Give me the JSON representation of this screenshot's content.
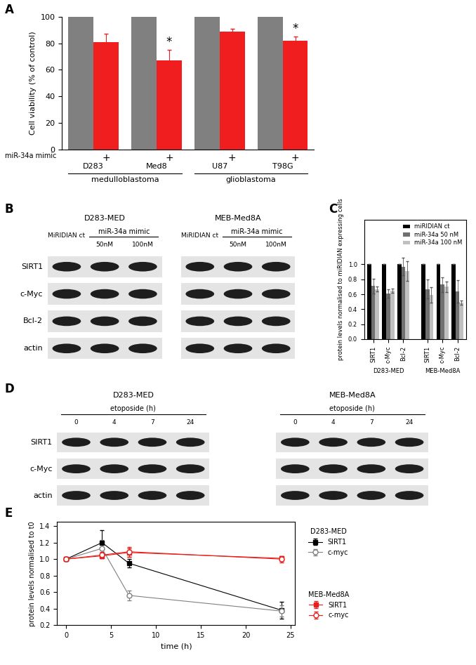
{
  "chart_data": [
    {
      "label": "A",
      "type": "bar",
      "ylabel": "Cell viability (% of control)",
      "groups": [
        {
          "name": "medulloblastoma",
          "categories": [
            "D283",
            "Med8"
          ]
        },
        {
          "name": "glioblastoma",
          "categories": [
            "U87",
            "T98G"
          ]
        }
      ],
      "series": [
        {
          "color": "#808080",
          "values": [
            100,
            100,
            100,
            100
          ]
        },
        {
          "name": "miR-34a mimic",
          "color": "#f01e1e",
          "values": [
            81,
            67,
            89,
            82
          ],
          "errors": [
            6,
            8,
            2,
            3
          ]
        }
      ],
      "treatment_mark": "+",
      "significance": [
        null,
        "*",
        null,
        "*"
      ],
      "ylim": [
        0,
        100
      ],
      "yticks": [
        0,
        20,
        40,
        60,
        80,
        100
      ]
    },
    {
      "label": "C",
      "type": "bar",
      "ylabel": "protein levels normalised to miRIDIAN expressing cells",
      "groups": [
        {
          "name": "D283-MED",
          "categories": [
            "SIRT1",
            "c-Myc",
            "Bcl-2"
          ]
        },
        {
          "name": "MEB-Med8A",
          "categories": [
            "SIRT1",
            "c-Myc",
            "Bcl-2"
          ]
        }
      ],
      "series": [
        {
          "name": "miRIDIAN ct",
          "color": "#000000",
          "values": [
            1,
            1,
            1,
            1,
            1,
            1
          ],
          "errors": [
            0,
            0,
            0,
            0,
            0,
            0
          ]
        },
        {
          "name": "miR-34a 50 nM",
          "color": "#707070",
          "values": [
            0.71,
            0.61,
            0.97,
            0.67,
            0.73,
            0.64
          ],
          "errors": [
            0.1,
            0.06,
            0.12,
            0.13,
            0.1,
            0.15
          ]
        },
        {
          "name": "miR-34a 100 nM",
          "color": "#c0c0c0",
          "values": [
            0.67,
            0.65,
            0.91,
            0.59,
            0.7,
            0.49
          ],
          "errors": [
            0.03,
            0.03,
            0.13,
            0.1,
            0.07,
            0.03
          ]
        }
      ],
      "legend": "upper right",
      "ylim": [
        0,
        1.6
      ],
      "yticks": [
        {
          "value": 0,
          "label": "0.0"
        },
        0.2,
        0.4,
        0.6,
        0.8,
        {
          "value": 1.0,
          "label": "1.0"
        }
      ]
    },
    {
      "label": "E",
      "type": "line",
      "xlabel": "time (h)",
      "ylabel": "protein levels normalised to t0",
      "x": [
        0,
        4,
        7,
        24
      ],
      "series": [
        {
          "name": "SIRT1",
          "group": "D283-MED",
          "color": "#000000",
          "marker": "square",
          "values": [
            1.0,
            1.2,
            0.95,
            0.38
          ],
          "errors": [
            0,
            0.15,
            0.05,
            0.1
          ]
        },
        {
          "name": "c-myc",
          "group": "D283-MED",
          "color": "#808080",
          "marker": "open circle",
          "values": [
            1.0,
            1.13,
            0.56,
            0.37
          ],
          "errors": [
            0,
            0.1,
            0.06,
            0.07
          ]
        },
        {
          "name": "SIRT1",
          "group": "MEB-Med8A",
          "color": "#e8201a",
          "marker": "square",
          "values": [
            1.0,
            1.04,
            1.08,
            1.01
          ],
          "errors": [
            0,
            0.03,
            0.05,
            0.03
          ]
        },
        {
          "name": "c-myc",
          "group": "MEB-Med8A",
          "color": "#e8201a",
          "marker": "open circle",
          "values": [
            1.0,
            1.05,
            1.09,
            1.0
          ],
          "errors": [
            0,
            0.04,
            0.06,
            0.04
          ]
        }
      ],
      "legend": "right",
      "xlim": [
        -1,
        25.5
      ],
      "xticks": [
        0,
        5,
        10,
        15,
        20,
        25
      ],
      "ylim": [
        0.2,
        1.45
      ],
      "yticks": [
        0.2,
        0.4,
        0.6,
        0.8,
        1.0,
        1.2,
        1.4
      ]
    }
  ],
  "blots": [
    {
      "label": "B",
      "rows": [
        "SIRT1",
        "c-Myc",
        "Bcl-2",
        "actin"
      ],
      "blots": [
        {
          "title": "D283-MED",
          "control": "MiRIDIAN ct",
          "treatment": "miR-34a mimic",
          "lanes": [
            "50nM",
            "100nM"
          ]
        },
        {
          "title": "MEB-Med8A",
          "control": "MiRIDIAN ct",
          "treatment": "miR-34a mimic",
          "lanes": [
            "50nM",
            "100nM"
          ]
        }
      ]
    },
    {
      "label": "D",
      "rows": [
        "SIRT1",
        "c-Myc",
        "actin"
      ],
      "blots": [
        {
          "title": "D283-MED",
          "treatment": "etoposide (h)",
          "lanes": [
            "0",
            "4",
            "7",
            "24"
          ]
        },
        {
          "title": "MEB-Med8A",
          "treatment": "etoposide (h)",
          "lanes": [
            "0",
            "4",
            "7",
            "24"
          ]
        }
      ]
    }
  ]
}
